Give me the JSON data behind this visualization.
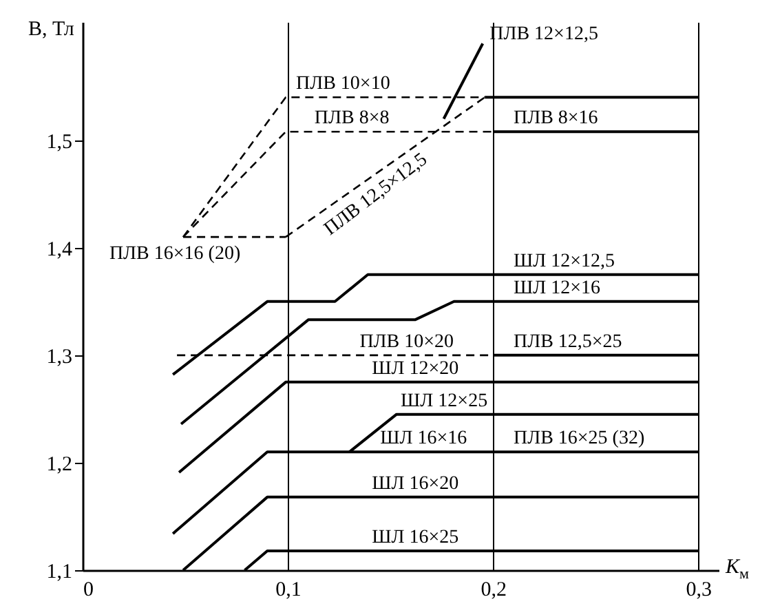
{
  "chart_data": {
    "type": "line",
    "xlabel": "K$_{м}$",
    "ylabel": "B, Тл",
    "xlim": [
      0,
      0.31
    ],
    "ylim": [
      1.1,
      1.61
    ],
    "xticks": [
      0,
      {
        "value": 0.1,
        "label": "0,1"
      },
      {
        "value": 0.2,
        "label": "0,2"
      },
      {
        "value": 0.3,
        "label": "0,3"
      }
    ],
    "yticks": [
      {
        "value": 1.1,
        "label": "1,1"
      },
      {
        "value": 1.2,
        "label": "1,2"
      },
      {
        "value": 1.3,
        "label": "1,3"
      },
      {
        "value": 1.4,
        "label": "1,4"
      },
      {
        "value": 1.5,
        "label": "1,5"
      }
    ],
    "grid": "x",
    "series": [
      {
        "color": "#000000",
        "line_style": "dashed",
        "x": [
          0.049,
          0.099
        ],
        "values": [
          1.41,
          1.41
        ]
      },
      {
        "color": "#000000",
        "line_style": "dashed",
        "x": [
          0.049,
          0.099,
          0.196
        ],
        "values": [
          1.41,
          1.54,
          1.54
        ]
      },
      {
        "color": "#000000",
        "line_style": "dashed",
        "x": [
          0.049,
          0.099,
          0.2
        ],
        "values": [
          1.41,
          1.508,
          1.508
        ]
      },
      {
        "color": "#000000",
        "line_style": "dashed",
        "x": [
          0.099,
          0.196
        ],
        "values": [
          1.41,
          1.54
        ]
      },
      {
        "color": "#000000",
        "line_style": "solid",
        "x": [
          0.196,
          0.3
        ],
        "values": [
          1.54,
          1.54
        ]
      },
      {
        "color": "#000000",
        "line_style": "solid",
        "x": [
          0.2,
          0.3
        ],
        "values": [
          1.508,
          1.508
        ]
      },
      {
        "color": "#000000",
        "line_style": "solid",
        "x": [
          0.176,
          0.195
        ],
        "values": [
          1.52,
          1.59
        ]
      },
      {
        "color": "#000000",
        "line_style": "solid",
        "x": [
          0.044,
          0.09,
          0.123,
          0.139,
          0.3
        ],
        "values": [
          1.282,
          1.35,
          1.35,
          1.375,
          1.375
        ]
      },
      {
        "color": "#000000",
        "line_style": "solid",
        "x": [
          0.048,
          0.11,
          0.162,
          0.181,
          0.3
        ],
        "values": [
          1.236,
          1.333,
          1.333,
          1.35,
          1.35
        ]
      },
      {
        "color": "#000000",
        "line_style": "dashed",
        "x": [
          0.046,
          0.2
        ],
        "values": [
          1.3,
          1.3
        ]
      },
      {
        "color": "#000000",
        "line_style": "solid",
        "x": [
          0.2,
          0.3
        ],
        "values": [
          1.3,
          1.3
        ]
      },
      {
        "color": "#000000",
        "line_style": "solid",
        "x": [
          0.047,
          0.099,
          0.3
        ],
        "values": [
          1.191,
          1.275,
          1.275
        ]
      },
      {
        "color": "#000000",
        "line_style": "solid",
        "x": [
          0.13,
          0.153,
          0.3
        ],
        "values": [
          1.21,
          1.245,
          1.245
        ]
      },
      {
        "color": "#000000",
        "line_style": "solid",
        "x": [
          0.044,
          0.09,
          0.3
        ],
        "values": [
          1.134,
          1.21,
          1.21
        ]
      },
      {
        "color": "#000000",
        "line_style": "solid",
        "x": [
          0.049,
          0.09,
          0.3
        ],
        "values": [
          1.1,
          1.168,
          1.168
        ]
      },
      {
        "color": "#000000",
        "line_style": "solid",
        "x": [
          0.079,
          0.09,
          0.3
        ],
        "values": [
          1.1,
          1.118,
          1.118
        ]
      }
    ],
    "annotations": [
      {
        "text": "ПЛВ 12×12,5",
        "x": 0.195,
        "y": 1.59
      },
      {
        "text": "ПЛВ 10×10",
        "x": 0.104,
        "y": 1.54
      },
      {
        "text": "ПЛВ 8×8",
        "x": 0.113,
        "y": 1.508
      },
      {
        "text": "ПЛВ 8×16",
        "x": 0.21,
        "y": 1.508
      },
      {
        "text": "ПЛВ 12,5×12,5",
        "x": 0.138,
        "y": 1.462
      },
      {
        "text": "ПЛВ 16×16 (20)",
        "x": 0.049,
        "y": 1.41
      },
      {
        "text": "ШЛ 12×12,5",
        "x": 0.21,
        "y": 1.375
      },
      {
        "text": "ШЛ 12×16",
        "x": 0.21,
        "y": 1.35
      },
      {
        "text": "ПЛВ 10×20",
        "x": 0.135,
        "y": 1.3
      },
      {
        "text": "ПЛВ 12,5×25",
        "x": 0.21,
        "y": 1.3
      },
      {
        "text": "ШЛ 12×20",
        "x": 0.141,
        "y": 1.275
      },
      {
        "text": "ШЛ 12×25",
        "x": 0.2,
        "y": 1.245
      },
      {
        "text": "ШЛ 16×16",
        "x": 0.145,
        "y": 1.21
      },
      {
        "text": "ПЛВ 16×25 (32)",
        "x": 0.21,
        "y": 1.21
      },
      {
        "text": "ШЛ 16×20",
        "x": 0.141,
        "y": 1.168
      },
      {
        "text": "ШЛ 16×25",
        "x": 0.141,
        "y": 1.118
      }
    ]
  }
}
